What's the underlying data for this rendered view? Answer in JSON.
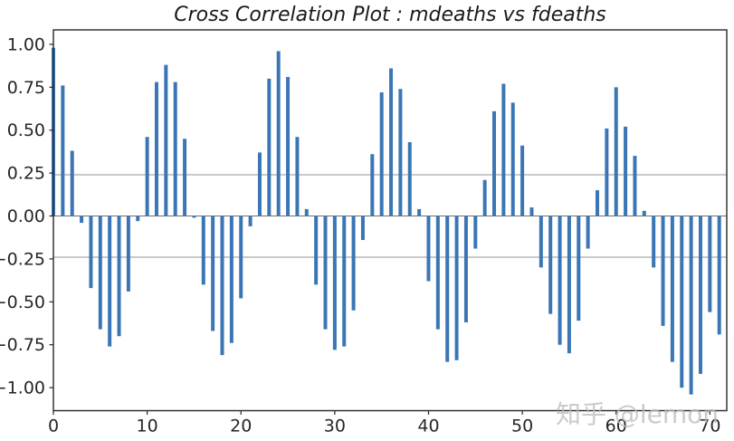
{
  "title": "Cross Correlation Plot : mdeaths vs fdeaths",
  "watermark": "知乎 @lemon",
  "colors": {
    "background": "#ffffff",
    "bar": "#3a76b5",
    "axis": "#262626",
    "tick_label": "#262626",
    "title": "#1a1a1a",
    "ci_line": "#959595",
    "zero_line": "#6e6e6e",
    "watermark": "#bdbdbd"
  },
  "chart_data": {
    "type": "bar",
    "subtype": "stem-cross-correlation",
    "title": "Cross Correlation Plot : mdeaths vs fdeaths",
    "xlabel": "",
    "ylabel": "",
    "grid": false,
    "legend": null,
    "x": [
      0,
      1,
      2,
      3,
      4,
      5,
      6,
      7,
      8,
      9,
      10,
      11,
      12,
      13,
      14,
      15,
      16,
      17,
      18,
      19,
      20,
      21,
      22,
      23,
      24,
      25,
      26,
      27,
      28,
      29,
      30,
      31,
      32,
      33,
      34,
      35,
      36,
      37,
      38,
      39,
      40,
      41,
      42,
      43,
      44,
      45,
      46,
      47,
      48,
      49,
      50,
      51,
      52,
      53,
      54,
      55,
      56,
      57,
      58,
      59,
      60,
      61,
      62,
      63,
      64,
      65,
      66,
      67,
      68,
      69,
      70,
      71
    ],
    "values": [
      0.98,
      0.76,
      0.38,
      -0.04,
      -0.42,
      -0.66,
      -0.76,
      -0.7,
      -0.44,
      -0.03,
      0.46,
      0.78,
      0.88,
      0.78,
      0.45,
      -0.01,
      -0.4,
      -0.67,
      -0.81,
      -0.74,
      -0.48,
      -0.06,
      0.37,
      0.8,
      0.96,
      0.81,
      0.46,
      0.04,
      -0.4,
      -0.66,
      -0.78,
      -0.76,
      -0.55,
      -0.14,
      0.36,
      0.72,
      0.86,
      0.74,
      0.43,
      0.04,
      -0.38,
      -0.66,
      -0.85,
      -0.84,
      -0.62,
      -0.19,
      0.21,
      0.61,
      0.77,
      0.66,
      0.41,
      0.05,
      -0.3,
      -0.57,
      -0.75,
      -0.8,
      -0.61,
      -0.19,
      0.15,
      0.51,
      0.75,
      0.52,
      0.35,
      0.03,
      -0.3,
      -0.64,
      -0.85,
      -1.0,
      -1.04,
      -0.92,
      -0.56,
      -0.69
    ],
    "confidence_bounds": [
      0.24,
      -0.24
    ],
    "zero_line": 0,
    "x_ticks": [
      0,
      10,
      20,
      30,
      40,
      50,
      60,
      70
    ],
    "x_tick_labels": [
      "0",
      "10",
      "20",
      "30",
      "40",
      "50",
      "60",
      "70"
    ],
    "y_ticks": [
      1.0,
      0.75,
      0.5,
      0.25,
      0.0,
      -0.25,
      -0.5,
      -0.75,
      -1.0
    ],
    "y_tick_labels": [
      "1.00",
      "0.75",
      "0.50",
      "0.25",
      "0.00",
      "−0.25",
      "−0.50",
      "−0.75",
      "−1.00"
    ],
    "xlim": [
      0,
      71.8
    ],
    "ylim": [
      -1.134,
      1.084
    ]
  }
}
